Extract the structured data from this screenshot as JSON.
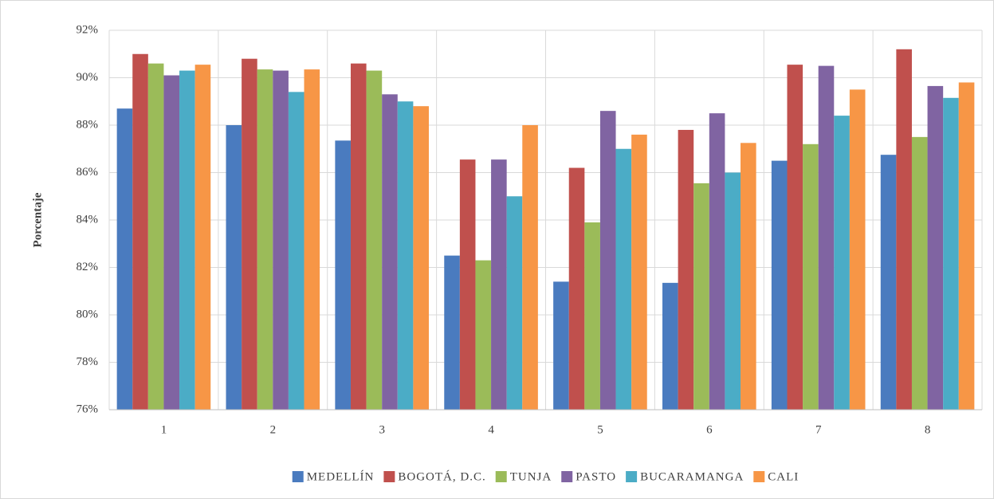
{
  "chart_data": {
    "type": "bar",
    "y_label": "Porcentaje",
    "categories": [
      "1",
      "2",
      "3",
      "4",
      "5",
      "6",
      "7",
      "8"
    ],
    "series": [
      {
        "name": "MEDELLÍN",
        "color": "#4a7bbf",
        "values": [
          88.7,
          88.0,
          87.35,
          82.5,
          81.4,
          81.35,
          86.5,
          86.75
        ]
      },
      {
        "name": "BOGOTÁ, D.C.",
        "color": "#c0504d",
        "values": [
          91.0,
          90.8,
          90.6,
          86.55,
          86.2,
          87.8,
          90.55,
          91.2
        ]
      },
      {
        "name": "TUNJA",
        "color": "#9bbb59",
        "values": [
          90.6,
          90.35,
          90.3,
          82.3,
          83.9,
          85.55,
          87.2,
          87.5
        ]
      },
      {
        "name": "PASTO",
        "color": "#8064a2",
        "values": [
          90.1,
          90.3,
          89.3,
          86.55,
          88.6,
          88.5,
          90.5,
          89.65
        ]
      },
      {
        "name": "BUCARAMANGA",
        "color": "#4bacc6",
        "values": [
          90.3,
          89.4,
          89.0,
          85.0,
          87.0,
          86.0,
          88.4,
          89.15
        ]
      },
      {
        "name": "CALI",
        "color": "#f79646",
        "values": [
          90.55,
          90.35,
          88.8,
          88.0,
          87.6,
          87.25,
          89.5,
          89.8
        ]
      }
    ],
    "ylim": [
      76,
      92
    ],
    "yticks": [
      {
        "value": 76,
        "label": "76%"
      },
      {
        "value": 78,
        "label": "78%"
      },
      {
        "value": 80,
        "label": "80%"
      },
      {
        "value": 82,
        "label": "82%"
      },
      {
        "value": 84,
        "label": "84%"
      },
      {
        "value": 86,
        "label": "86%"
      },
      {
        "value": 88,
        "label": "88%"
      },
      {
        "value": 90,
        "label": "90%"
      },
      {
        "value": 92,
        "label": "92%"
      }
    ],
    "grid": true,
    "legend": "bottom"
  }
}
